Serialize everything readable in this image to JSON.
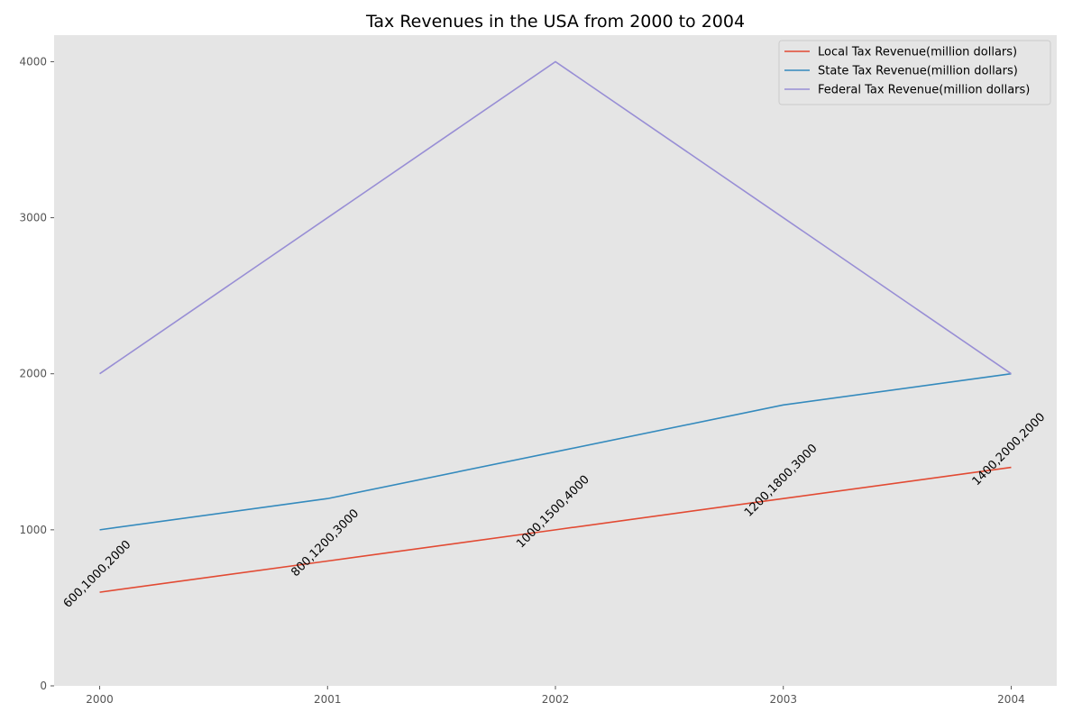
{
  "chart_data": {
    "type": "line",
    "title": "Tax Revenues in the USA from 2000 to 2004",
    "xlabel": "",
    "ylabel": "",
    "x": [
      "2000",
      "2001",
      "2002",
      "2003",
      "2004"
    ],
    "xlim": [
      1999.8,
      2004.2
    ],
    "ylim": [
      0,
      4170
    ],
    "yticks": [
      0,
      1000,
      2000,
      3000,
      4000
    ],
    "grid": false,
    "legend_position": "top-right",
    "background": "#e5e5e5",
    "series": [
      {
        "name": "Local Tax Revenue(million dollars)",
        "color": "#e24a33",
        "values": [
          600,
          800,
          1000,
          1200,
          1400
        ]
      },
      {
        "name": "State Tax Revenue(million dollars)",
        "color": "#348abd",
        "values": [
          1000,
          1200,
          1500,
          1800,
          2000
        ]
      },
      {
        "name": "Federal Tax Revenue(million dollars)",
        "color": "#988ed5",
        "values": [
          2000,
          3000,
          4000,
          3000,
          2000
        ]
      }
    ],
    "annotations": [
      {
        "x": "2000",
        "text": "600,1000,2000"
      },
      {
        "x": "2001",
        "text": "800,1200,3000"
      },
      {
        "x": "2002",
        "text": "1000,1500,4000"
      },
      {
        "x": "2003",
        "text": "1200,1800,3000"
      },
      {
        "x": "2004",
        "text": "1400,2000,2000"
      }
    ]
  }
}
